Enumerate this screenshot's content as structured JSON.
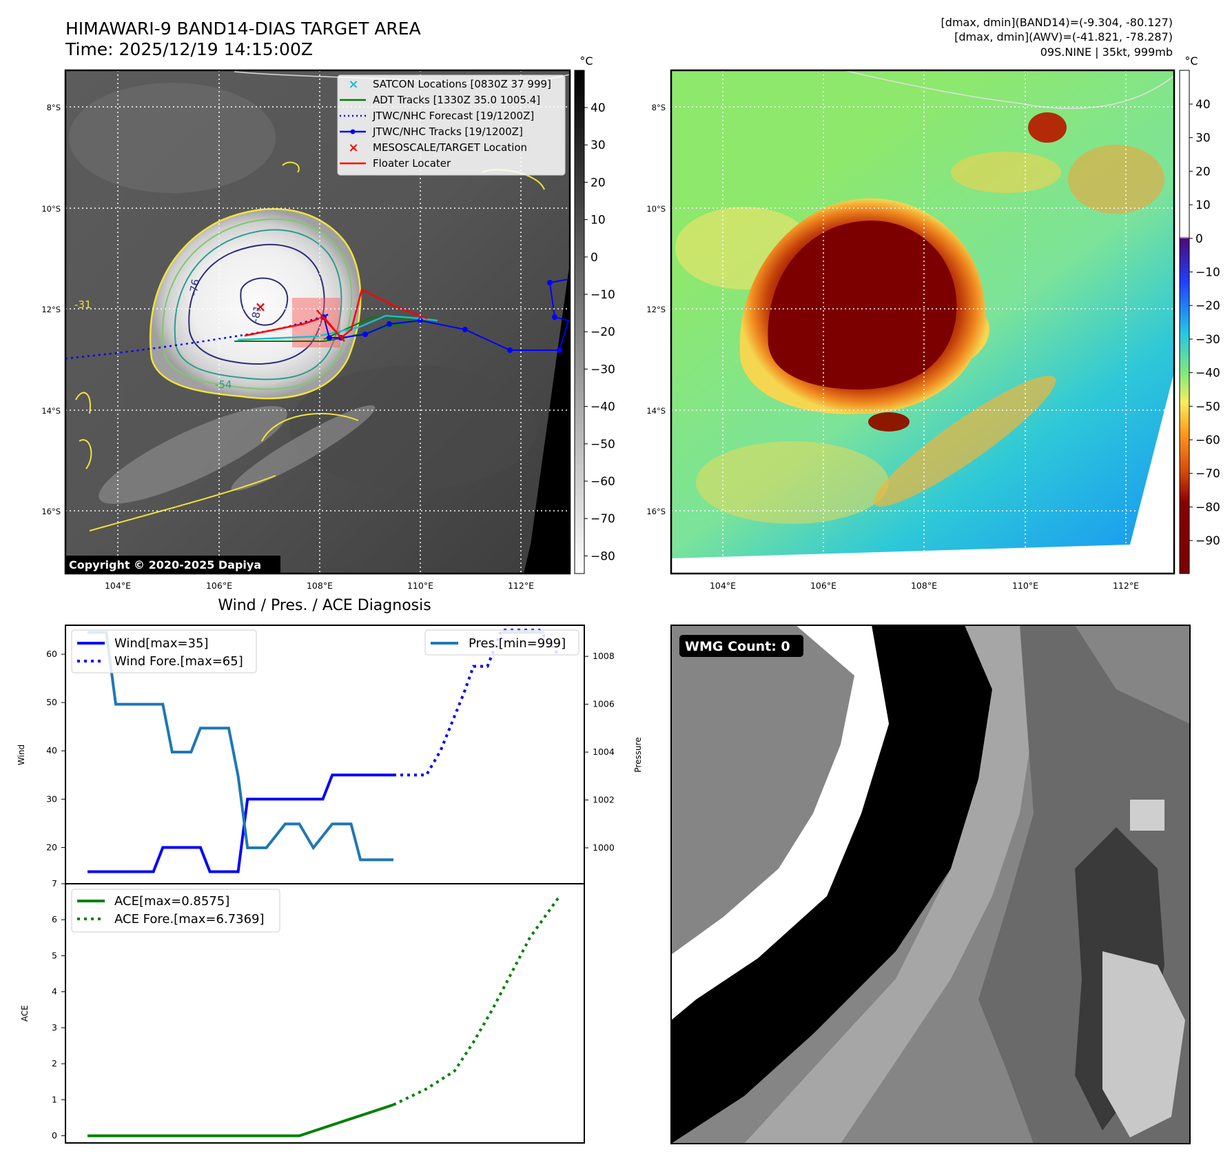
{
  "title": {
    "line1": "HIMAWARI-9 BAND14-DIAS TARGET AREA",
    "line2": "Time: 2025/12/19 14:15:00Z"
  },
  "info": {
    "line1": "[dmax, dmin](BAND14)=(-9.304, -80.127)",
    "line2": "[dmax, dmin](AWV)=(-41.821, -78.287)",
    "line3": "09S.NINE | 35kt, 999mb"
  },
  "map": {
    "lat_labels": [
      "8°S",
      "10°S",
      "12°S",
      "14°S",
      "16°S"
    ],
    "lon_labels": [
      "104°E",
      "106°E",
      "108°E",
      "110°E",
      "112°E"
    ],
    "copyright": "Copyright © 2020-2025 Dapiya",
    "legend": [
      {
        "label": "SATCON Locations [0830Z 37 999]",
        "color": "#17becf",
        "marker": "x"
      },
      {
        "label": "ADT Tracks [1330Z 35.0 1005.4]",
        "color": "#008000",
        "marker": "line"
      },
      {
        "label": "JTWC/NHC Forecast [19/1200Z]",
        "color": "#0000ff",
        "marker": "dotted"
      },
      {
        "label": "JTWC/NHC Tracks [19/1200Z]",
        "color": "#0000ff",
        "marker": "line-dot"
      },
      {
        "label": "MESOSCALE/TARGET Location",
        "color": "#ff0000",
        "marker": "x"
      },
      {
        "label": "Floater Locater",
        "color": "#ff0000",
        "marker": "line"
      }
    ],
    "contour_labels": [
      "-31",
      "-54",
      "-76",
      "-81"
    ]
  },
  "colorbar_gray": {
    "unit": "°C",
    "ticks": [
      "40",
      "30",
      "20",
      "10",
      "0",
      "−10",
      "−20",
      "−30",
      "−40",
      "−50",
      "−60",
      "−70",
      "−80"
    ]
  },
  "colorbar_color": {
    "unit": "°C",
    "ticks": [
      "40",
      "30",
      "20",
      "10",
      "0",
      "−10",
      "−20",
      "−30",
      "−40",
      "−50",
      "−60",
      "−70",
      "−80",
      "−90"
    ]
  },
  "wmg": {
    "label": "WMG Count: 0"
  },
  "chart_data": [
    {
      "type": "line",
      "title": "Wind / Pres. / ACE Diagnosis",
      "ylabel": "Wind",
      "ylabel_right": "Pressure",
      "ylim": [
        12.5,
        66
      ],
      "ylim_right": [
        998.5,
        1009.3
      ],
      "y_ticks": [
        "60",
        "50",
        "40",
        "30",
        "20"
      ],
      "y_right_ticks": [
        "1008",
        "1006",
        "1004",
        "1002",
        "1000"
      ],
      "series": [
        {
          "name": "Wind[max=35]",
          "color": "#0000ff",
          "style": "solid",
          "x": [
            0,
            14,
            16,
            24,
            26,
            32,
            34,
            50,
            52,
            65
          ],
          "values": [
            15,
            15,
            20,
            20,
            15,
            15,
            30,
            30,
            35,
            35
          ]
        },
        {
          "name": "Wind Fore.[max=65]",
          "color": "#0000ff",
          "style": "dotted",
          "x": [
            65,
            72,
            75,
            80,
            82,
            85,
            88,
            92,
            96,
            100
          ],
          "values": [
            35,
            35,
            40,
            52,
            57.5,
            57.5,
            65,
            65,
            65,
            60
          ]
        },
        {
          "name": "Pres.[min=999]",
          "color": "#1f77b4",
          "style": "solid",
          "axis": "right",
          "x": [
            0,
            4,
            6,
            16,
            18,
            22,
            24,
            30,
            32,
            34,
            38,
            42,
            45,
            48,
            52,
            56,
            58,
            65
          ],
          "values": [
            1009,
            1009,
            1006,
            1006,
            1004,
            1004,
            1005,
            1005,
            1003,
            1000,
            1000,
            1001,
            1001,
            1000,
            1001,
            1001,
            999.5,
            999.5
          ]
        },
        {
          "name": "Pres. (upper segment)",
          "color": "#1f77b4",
          "style": "solid",
          "axis": "right",
          "x": [
            88,
            97
          ],
          "values": [
            1009,
            1009
          ]
        }
      ]
    },
    {
      "type": "line",
      "ylabel": "ACE",
      "ylim": [
        -0.2,
        7
      ],
      "y_ticks": [
        "7",
        "6",
        "5",
        "4",
        "3",
        "2",
        "1",
        "0"
      ],
      "series": [
        {
          "name": "ACE[max=0.8575]",
          "color": "#008000",
          "style": "solid",
          "x": [
            0,
            45,
            65
          ],
          "values": [
            0,
            0,
            0.86
          ]
        },
        {
          "name": "ACE Fore.[max=6.7369]",
          "color": "#008000",
          "style": "dotted",
          "x": [
            65,
            72,
            78,
            82,
            86,
            90,
            94,
            100
          ],
          "values": [
            0.86,
            1.3,
            1.8,
            2.6,
            3.5,
            4.5,
            5.5,
            6.6
          ]
        }
      ]
    }
  ]
}
